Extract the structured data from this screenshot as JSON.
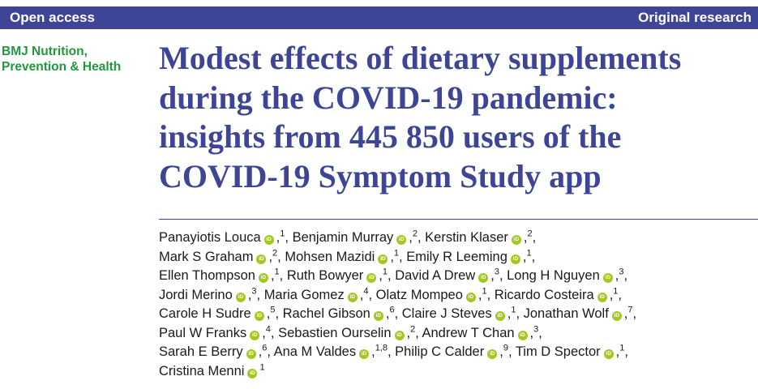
{
  "header": {
    "left": "Open access",
    "right": "Original research"
  },
  "journal": {
    "line1": "BMJ Nutrition,",
    "line2": "Prevention & Health"
  },
  "title": {
    "line1": "Modest effects of dietary supplements",
    "line2": "during the COVID-19 pandemic:",
    "line3": "insights from 445 850 users of the",
    "line4": "COVID-19 Symptom Study app"
  },
  "icon": {
    "name": "orcid-icon",
    "glyph": "iD",
    "color": "#a3c81f"
  },
  "colors": {
    "brand": "#3f4596",
    "journal": "#1e9a3c"
  },
  "author_lines": [
    [
      {
        "name": "Panayiotis Louca",
        "aff": "1"
      },
      {
        "name": "Benjamin Murray",
        "aff": "2"
      },
      {
        "name": "Kerstin Klaser",
        "aff": "2"
      }
    ],
    [
      {
        "name": "Mark S Graham",
        "aff": "2"
      },
      {
        "name": "Mohsen Mazidi",
        "aff": "1"
      },
      {
        "name": "Emily R Leeming",
        "aff": "1"
      }
    ],
    [
      {
        "name": "Ellen Thompson",
        "aff": "1"
      },
      {
        "name": "Ruth Bowyer",
        "aff": "1"
      },
      {
        "name": "David A Drew",
        "aff": "3"
      },
      {
        "name": "Long H Nguyen",
        "aff": "3"
      }
    ],
    [
      {
        "name": "Jordi Merino",
        "aff": "3"
      },
      {
        "name": "Maria Gomez",
        "aff": "4"
      },
      {
        "name": "Olatz Mompeo",
        "aff": "1"
      },
      {
        "name": "Ricardo Costeira",
        "aff": "1"
      }
    ],
    [
      {
        "name": "Carole H Sudre",
        "aff": "5"
      },
      {
        "name": "Rachel Gibson",
        "aff": "6"
      },
      {
        "name": "Claire J Steves",
        "aff": "1"
      },
      {
        "name": "Jonathan Wolf",
        "aff": "7"
      }
    ],
    [
      {
        "name": "Paul W Franks",
        "aff": "4"
      },
      {
        "name": "Sebastien Ourselin",
        "aff": "2"
      },
      {
        "name": "Andrew T Chan",
        "aff": "3"
      }
    ],
    [
      {
        "name": "Sarah E Berry",
        "aff": "6"
      },
      {
        "name": "Ana M Valdes",
        "aff": "1,8"
      },
      {
        "name": "Philip C Calder",
        "aff": "9"
      },
      {
        "name": "Tim D Spector",
        "aff": "1"
      }
    ],
    [
      {
        "name": "Cristina Menni",
        "aff": "1"
      }
    ]
  ]
}
